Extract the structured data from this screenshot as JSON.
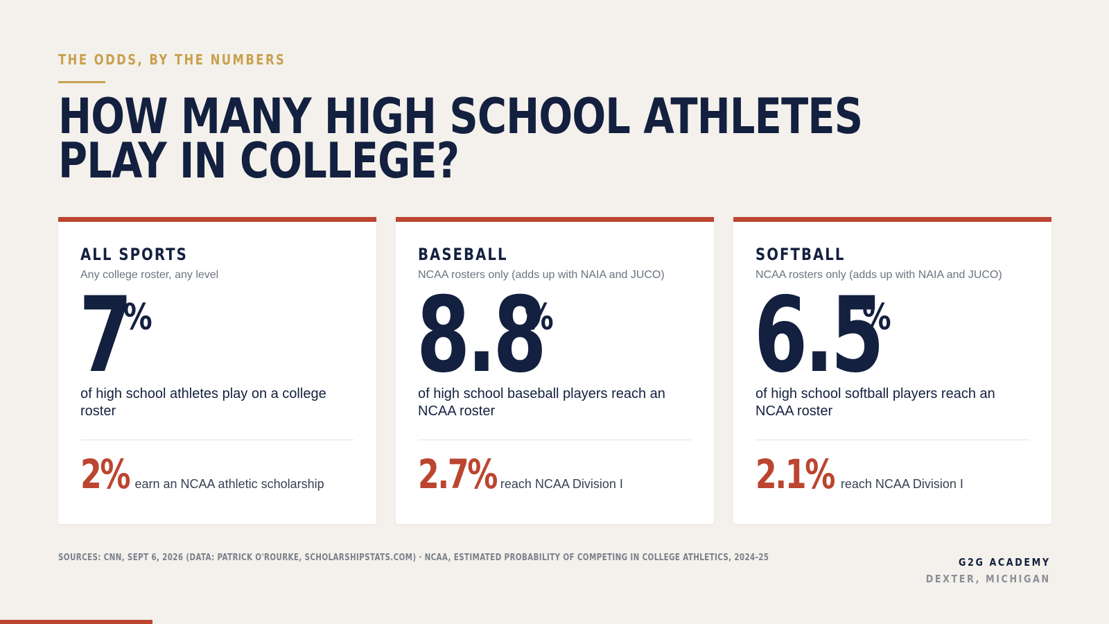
{
  "header": {
    "eyebrow": "THE ODDS, BY THE NUMBERS",
    "title_line1": "HOW MANY HIGH SCHOOL ATHLETES",
    "title_line2": "PLAY IN COLLEGE?"
  },
  "cards": [
    {
      "title": "ALL SPORTS",
      "subtitle": "Any college roster, any level",
      "stat": "7",
      "stat_unit": "%",
      "description": "of high school athletes play on a college roster",
      "sub_stat": "2%",
      "sub_label": "earn an NCAA athletic scholarship"
    },
    {
      "title": "BASEBALL",
      "subtitle": "NCAA rosters only (adds up with NAIA and JUCO)",
      "stat": "8.8",
      "stat_unit": "%",
      "description": "of high school baseball players reach an NCAA roster",
      "sub_stat": "2.7%",
      "sub_label": "reach NCAA Division I"
    },
    {
      "title": "SOFTBALL",
      "subtitle": "NCAA rosters only (adds up with NAIA and JUCO)",
      "stat": "6.5",
      "stat_unit": "%",
      "description": "of high school softball players reach an NCAA roster",
      "sub_stat": "2.1%",
      "sub_label": "reach NCAA Division I"
    }
  ],
  "footer": {
    "sources": "SOURCES: CNN, SEPT 6, 2026 (DATA: PATRICK O'ROURKE, SCHOLARSHIPSTATS.COM) · NCAA, ESTIMATED PROBABILITY OF COMPETING IN COLLEGE ATHLETICS, 2024-25",
    "brand_name": "G2G ACADEMY",
    "brand_location": "DEXTER, MICHIGAN"
  },
  "colors": {
    "background": "#f4f1ec",
    "navy": "#13203f",
    "accent_red": "#bb4530",
    "gold": "#c8a04f"
  }
}
